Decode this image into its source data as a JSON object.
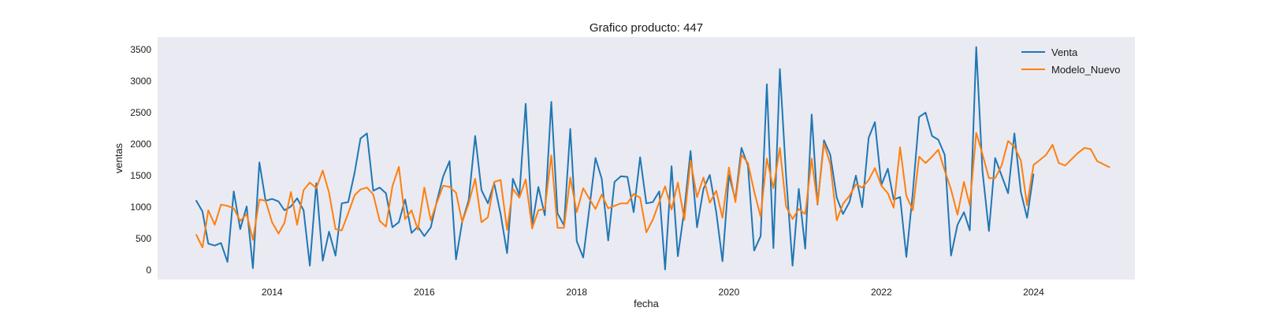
{
  "chart_data": {
    "type": "line",
    "title": "Grafico producto: 447",
    "xlabel": "fecha",
    "ylabel": "ventas",
    "xlim": [
      "2012-07-01",
      "2025-05-01"
    ],
    "ylim": [
      -150,
      3700
    ],
    "x_ticks": [
      "2014",
      "2016",
      "2018",
      "2020",
      "2022",
      "2024"
    ],
    "y_ticks": [
      "0",
      "500",
      "1000",
      "1500",
      "2000",
      "2500",
      "3000",
      "3500"
    ],
    "legend": "top-right",
    "grid": false,
    "background": "#eaeaf2",
    "colors": {
      "Venta": "#1f77b4",
      "Modelo_Nuevo": "#ff7f0e"
    },
    "series": [
      {
        "name": "Venta",
        "start": "2013-01",
        "frequency": "monthly",
        "values": [
          1110,
          930,
          420,
          390,
          430,
          130,
          1250,
          650,
          1010,
          30,
          1710,
          1100,
          1130,
          1090,
          950,
          1010,
          1140,
          950,
          70,
          1380,
          150,
          610,
          230,
          1060,
          1080,
          1550,
          2090,
          2170,
          1260,
          1310,
          1220,
          680,
          760,
          1120,
          590,
          690,
          540,
          680,
          1090,
          1490,
          1730,
          170,
          770,
          1110,
          2130,
          1270,
          1060,
          1380,
          890,
          270,
          1450,
          1190,
          2640,
          710,
          1320,
          870,
          2670,
          900,
          710,
          2240,
          460,
          200,
          940,
          1780,
          1450,
          470,
          1400,
          1490,
          1480,
          920,
          1790,
          1060,
          1080,
          1250,
          10,
          1650,
          220,
          960,
          1890,
          680,
          1290,
          1510,
          920,
          140,
          1510,
          1120,
          1940,
          1660,
          310,
          540,
          2950,
          350,
          3190,
          1500,
          70,
          1290,
          340,
          2470,
          1040,
          2060,
          1830,
          1150,
          890,
          1080,
          1500,
          1000,
          2100,
          2350,
          1350,
          1610,
          1120,
          1160,
          210,
          1230,
          2430,
          2500,
          2130,
          2070,
          1830,
          230,
          720,
          920,
          630,
          3540,
          1570,
          620,
          1780,
          1500,
          1220,
          2170,
          1240,
          830,
          1530
        ]
      },
      {
        "name": "Modelo_Nuevo",
        "start": "2013-01",
        "frequency": "monthly",
        "values": [
          570,
          360,
          950,
          720,
          1040,
          1020,
          980,
          780,
          890,
          480,
          1120,
          1100,
          760,
          580,
          750,
          1240,
          720,
          1270,
          1390,
          1300,
          1580,
          1230,
          650,
          630,
          900,
          1190,
          1280,
          1310,
          1200,
          780,
          690,
          1330,
          1640,
          810,
          950,
          640,
          1310,
          790,
          1070,
          1340,
          1320,
          1230,
          760,
          1060,
          1450,
          760,
          840,
          1400,
          1430,
          640,
          1290,
          1150,
          1440,
          660,
          950,
          970,
          1820,
          670,
          670,
          1470,
          920,
          1300,
          1140,
          970,
          1200,
          980,
          1020,
          1060,
          1060,
          1210,
          1150,
          600,
          800,
          1080,
          1330,
          960,
          1390,
          800,
          1740,
          1160,
          1470,
          1070,
          1260,
          830,
          1630,
          1080,
          1830,
          1700,
          1250,
          850,
          1770,
          1300,
          1940,
          1010,
          810,
          970,
          890,
          1770,
          1050,
          2010,
          1680,
          790,
          1050,
          1180,
          1360,
          1310,
          1430,
          1620,
          1340,
          1220,
          990,
          1950,
          1180,
          950,
          1800,
          1700,
          1800,
          1910,
          1580,
          1280,
          880,
          1400,
          1030,
          2180,
          1840,
          1460,
          1460,
          1660,
          2050,
          1960,
          1740,
          1030,
          1670,
          1750,
          1830,
          1990,
          1700,
          1660,
          1760,
          1860,
          1940,
          1920,
          1730,
          1680,
          1630
        ]
      }
    ]
  }
}
